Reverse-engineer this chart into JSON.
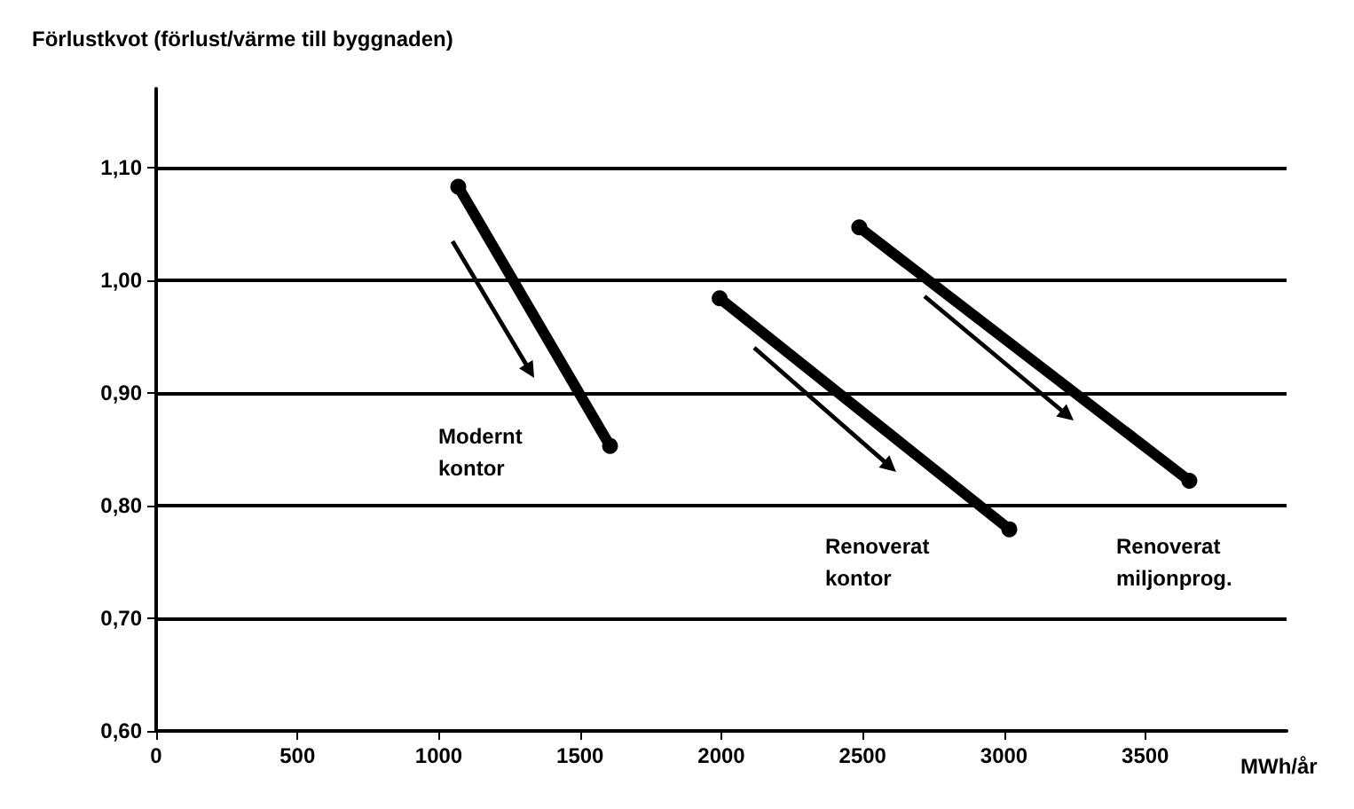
{
  "chart_data": {
    "type": "line",
    "ylabel": "Förlustkvot (förlust/värme till byggnaden)",
    "xlabel": "MWh/år",
    "series": [
      {
        "color": "#000000",
        "x": [
          1069,
          1606
        ],
        "values": [
          1.083,
          0.853
        ]
      },
      {
        "color": "#000000",
        "x": [
          1994,
          3019
        ],
        "values": [
          0.984,
          0.779
        ]
      },
      {
        "color": "#000000",
        "x": [
          2488,
          3656
        ],
        "values": [
          1.047,
          0.822
        ]
      }
    ],
    "xlim": [
      0,
      4000
    ],
    "xticks": [
      0,
      500,
      1000,
      1500,
      2000,
      2500,
      3000,
      3500
    ],
    "ylim": [
      0.6,
      1.17
    ],
    "yticks": [
      {
        "value": 0.6,
        "label": "0,60"
      },
      {
        "value": 0.7,
        "label": "0,70"
      },
      {
        "value": 0.8,
        "label": "0,80"
      },
      {
        "value": 0.9,
        "label": "0,90"
      },
      {
        "value": 1.0,
        "label": "1,00"
      },
      {
        "value": 1.1,
        "label": "1,10"
      }
    ],
    "grid": "y",
    "marker": "circle",
    "line_style": "solid",
    "annotations": [
      "Modernt\nkontor",
      "Renoverat\nkontor",
      "Renoverat\nmiljonprog."
    ]
  }
}
